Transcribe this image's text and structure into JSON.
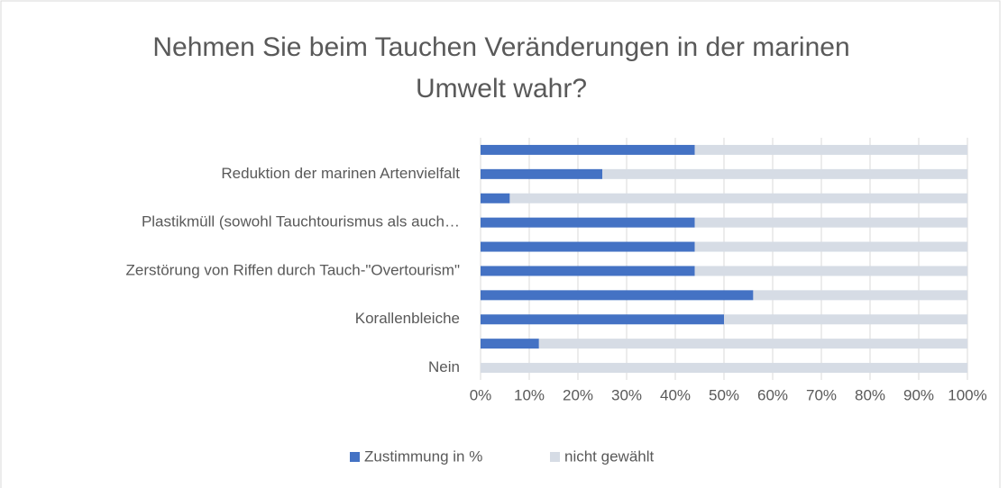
{
  "chart_data": {
    "type": "stacked_barh",
    "title": "Nehmen Sie beim Tauchen Veränderungen in der marinen Umwelt wahr?",
    "categories": [
      null,
      "Reduktion der marinen Artenvielfalt",
      null,
      "Plastikmüll (sowohl Tauchtourismus als auch…",
      null,
      "Zerstörung von Riffen durch Tauch-\"Overtourism\"",
      null,
      "Korallenbleiche",
      null,
      "Nein"
    ],
    "series": [
      {
        "name": "Zustimmung in %",
        "color": "#4472c4",
        "values": [
          44,
          25,
          6,
          44,
          44,
          44,
          56,
          50,
          12,
          0
        ]
      },
      {
        "name": "nicht gewählt",
        "color": "#d6dce5",
        "values": [
          56,
          75,
          94,
          56,
          56,
          56,
          44,
          50,
          88,
          100
        ]
      }
    ],
    "xlim": [
      0,
      100
    ],
    "xticks": [
      {
        "value": 0,
        "label": "0%"
      },
      {
        "value": 10,
        "label": "10%"
      },
      {
        "value": 20,
        "label": "20%"
      },
      {
        "value": 30,
        "label": "30%"
      },
      {
        "value": 40,
        "label": "40%"
      },
      {
        "value": 50,
        "label": "50%"
      },
      {
        "value": 60,
        "label": "60%"
      },
      {
        "value": 70,
        "label": "70%"
      },
      {
        "value": 80,
        "label": "80%"
      },
      {
        "value": 90,
        "label": "90%"
      },
      {
        "value": 100,
        "label": "100%"
      }
    ],
    "grid": true,
    "legend": "bottom"
  }
}
